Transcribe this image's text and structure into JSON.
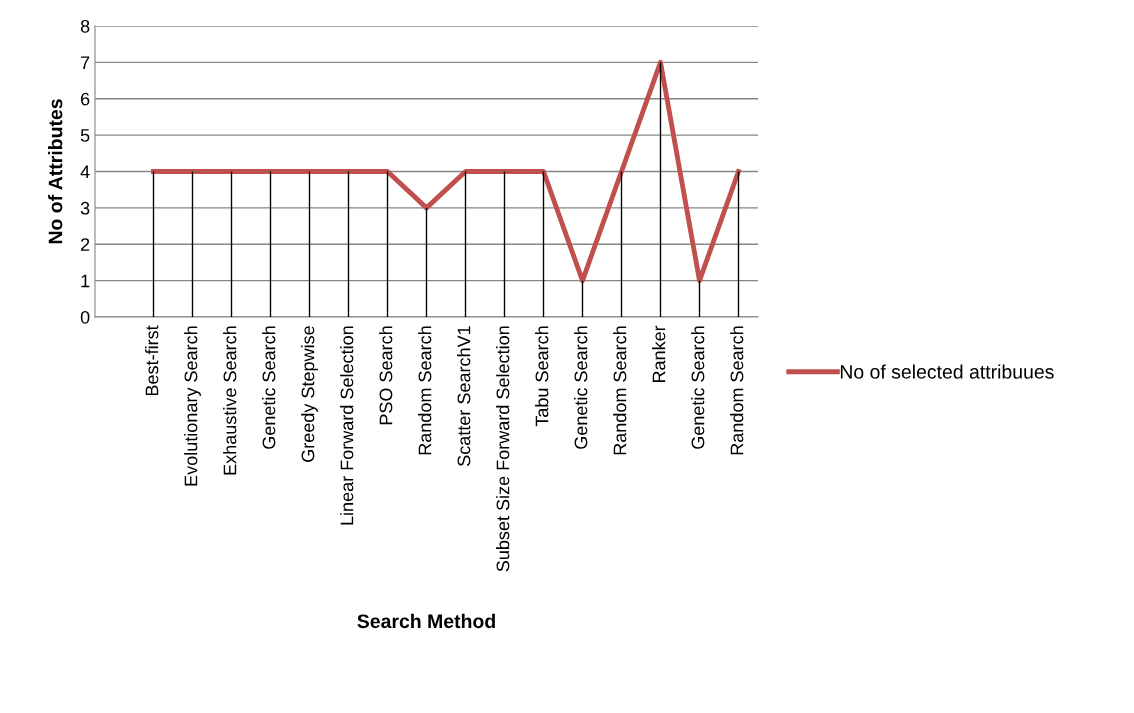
{
  "chart_data": {
    "type": "line",
    "xlabel": "Search Method",
    "ylabel": "No of Attributes",
    "categories": [
      null,
      "Best-first",
      "Evolutionary Search",
      "Exhaustive Search",
      "Genetic Search",
      "Greedy Stepwise",
      "Linear Forward Selection",
      "PSO Search",
      "Random Search",
      "Scatter SearchV1",
      "Subset Size Forward Selection",
      "Tabu Search",
      "Genetic Search",
      "Random Search",
      "Ranker",
      "Genetic Search",
      "Random Search"
    ],
    "series": [
      {
        "name": "No of selected attribuues",
        "color": "#c0504d",
        "values": [
          null,
          4,
          4,
          4,
          4,
          4,
          4,
          4,
          3,
          4,
          4,
          4,
          1,
          4,
          7,
          1,
          4
        ]
      },
      {
        "type": "bar",
        "color": "#000000",
        "values": [
          null,
          4,
          4,
          4,
          4,
          4,
          4,
          4,
          3,
          4,
          4,
          4,
          1,
          4,
          7,
          1,
          4
        ]
      }
    ],
    "ylim": [
      0,
      8
    ],
    "yticks": [
      0,
      1,
      2,
      3,
      4,
      5,
      6,
      7,
      8
    ],
    "grid": "y",
    "legend": "right",
    "marker": "none"
  }
}
